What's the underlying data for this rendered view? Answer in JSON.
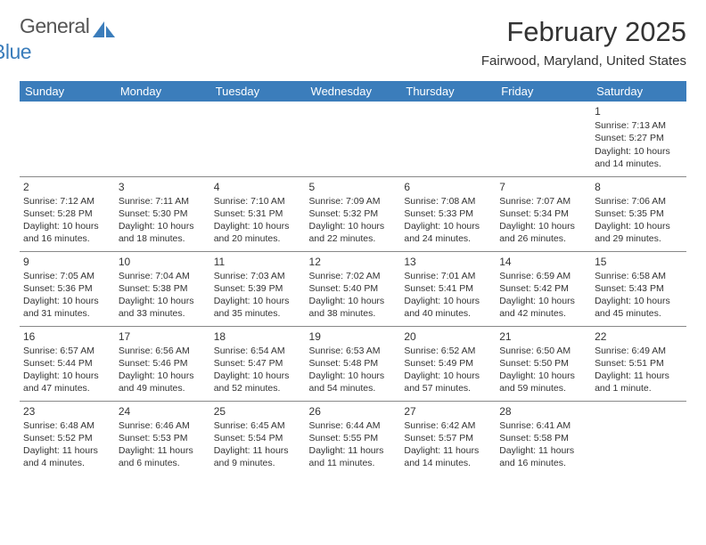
{
  "logo": {
    "text1": "General",
    "text2": "Blue",
    "shape_color": "#3b7dbb",
    "text1_color": "#555555"
  },
  "header": {
    "month_title": "February 2025",
    "location": "Fairwood, Maryland, United States",
    "title_fontsize": 31,
    "location_fontsize": 15,
    "text_color": "#333333"
  },
  "calendar": {
    "header_bg": "#3b7dbb",
    "header_text_color": "#ffffff",
    "border_color": "#888888",
    "cell_text_color": "#333333",
    "day_header_fontsize": 13,
    "cell_fontsize": 10.5,
    "daynum_fontsize": 12,
    "day_headers": [
      "Sunday",
      "Monday",
      "Tuesday",
      "Wednesday",
      "Thursday",
      "Friday",
      "Saturday"
    ],
    "weeks": [
      [
        null,
        null,
        null,
        null,
        null,
        null,
        {
          "n": "1",
          "sunrise": "Sunrise: 7:13 AM",
          "sunset": "Sunset: 5:27 PM",
          "day1": "Daylight: 10 hours",
          "day2": "and 14 minutes."
        }
      ],
      [
        {
          "n": "2",
          "sunrise": "Sunrise: 7:12 AM",
          "sunset": "Sunset: 5:28 PM",
          "day1": "Daylight: 10 hours",
          "day2": "and 16 minutes."
        },
        {
          "n": "3",
          "sunrise": "Sunrise: 7:11 AM",
          "sunset": "Sunset: 5:30 PM",
          "day1": "Daylight: 10 hours",
          "day2": "and 18 minutes."
        },
        {
          "n": "4",
          "sunrise": "Sunrise: 7:10 AM",
          "sunset": "Sunset: 5:31 PM",
          "day1": "Daylight: 10 hours",
          "day2": "and 20 minutes."
        },
        {
          "n": "5",
          "sunrise": "Sunrise: 7:09 AM",
          "sunset": "Sunset: 5:32 PM",
          "day1": "Daylight: 10 hours",
          "day2": "and 22 minutes."
        },
        {
          "n": "6",
          "sunrise": "Sunrise: 7:08 AM",
          "sunset": "Sunset: 5:33 PM",
          "day1": "Daylight: 10 hours",
          "day2": "and 24 minutes."
        },
        {
          "n": "7",
          "sunrise": "Sunrise: 7:07 AM",
          "sunset": "Sunset: 5:34 PM",
          "day1": "Daylight: 10 hours",
          "day2": "and 26 minutes."
        },
        {
          "n": "8",
          "sunrise": "Sunrise: 7:06 AM",
          "sunset": "Sunset: 5:35 PM",
          "day1": "Daylight: 10 hours",
          "day2": "and 29 minutes."
        }
      ],
      [
        {
          "n": "9",
          "sunrise": "Sunrise: 7:05 AM",
          "sunset": "Sunset: 5:36 PM",
          "day1": "Daylight: 10 hours",
          "day2": "and 31 minutes."
        },
        {
          "n": "10",
          "sunrise": "Sunrise: 7:04 AM",
          "sunset": "Sunset: 5:38 PM",
          "day1": "Daylight: 10 hours",
          "day2": "and 33 minutes."
        },
        {
          "n": "11",
          "sunrise": "Sunrise: 7:03 AM",
          "sunset": "Sunset: 5:39 PM",
          "day1": "Daylight: 10 hours",
          "day2": "and 35 minutes."
        },
        {
          "n": "12",
          "sunrise": "Sunrise: 7:02 AM",
          "sunset": "Sunset: 5:40 PM",
          "day1": "Daylight: 10 hours",
          "day2": "and 38 minutes."
        },
        {
          "n": "13",
          "sunrise": "Sunrise: 7:01 AM",
          "sunset": "Sunset: 5:41 PM",
          "day1": "Daylight: 10 hours",
          "day2": "and 40 minutes."
        },
        {
          "n": "14",
          "sunrise": "Sunrise: 6:59 AM",
          "sunset": "Sunset: 5:42 PM",
          "day1": "Daylight: 10 hours",
          "day2": "and 42 minutes."
        },
        {
          "n": "15",
          "sunrise": "Sunrise: 6:58 AM",
          "sunset": "Sunset: 5:43 PM",
          "day1": "Daylight: 10 hours",
          "day2": "and 45 minutes."
        }
      ],
      [
        {
          "n": "16",
          "sunrise": "Sunrise: 6:57 AM",
          "sunset": "Sunset: 5:44 PM",
          "day1": "Daylight: 10 hours",
          "day2": "and 47 minutes."
        },
        {
          "n": "17",
          "sunrise": "Sunrise: 6:56 AM",
          "sunset": "Sunset: 5:46 PM",
          "day1": "Daylight: 10 hours",
          "day2": "and 49 minutes."
        },
        {
          "n": "18",
          "sunrise": "Sunrise: 6:54 AM",
          "sunset": "Sunset: 5:47 PM",
          "day1": "Daylight: 10 hours",
          "day2": "and 52 minutes."
        },
        {
          "n": "19",
          "sunrise": "Sunrise: 6:53 AM",
          "sunset": "Sunset: 5:48 PM",
          "day1": "Daylight: 10 hours",
          "day2": "and 54 minutes."
        },
        {
          "n": "20",
          "sunrise": "Sunrise: 6:52 AM",
          "sunset": "Sunset: 5:49 PM",
          "day1": "Daylight: 10 hours",
          "day2": "and 57 minutes."
        },
        {
          "n": "21",
          "sunrise": "Sunrise: 6:50 AM",
          "sunset": "Sunset: 5:50 PM",
          "day1": "Daylight: 10 hours",
          "day2": "and 59 minutes."
        },
        {
          "n": "22",
          "sunrise": "Sunrise: 6:49 AM",
          "sunset": "Sunset: 5:51 PM",
          "day1": "Daylight: 11 hours",
          "day2": "and 1 minute."
        }
      ],
      [
        {
          "n": "23",
          "sunrise": "Sunrise: 6:48 AM",
          "sunset": "Sunset: 5:52 PM",
          "day1": "Daylight: 11 hours",
          "day2": "and 4 minutes."
        },
        {
          "n": "24",
          "sunrise": "Sunrise: 6:46 AM",
          "sunset": "Sunset: 5:53 PM",
          "day1": "Daylight: 11 hours",
          "day2": "and 6 minutes."
        },
        {
          "n": "25",
          "sunrise": "Sunrise: 6:45 AM",
          "sunset": "Sunset: 5:54 PM",
          "day1": "Daylight: 11 hours",
          "day2": "and 9 minutes."
        },
        {
          "n": "26",
          "sunrise": "Sunrise: 6:44 AM",
          "sunset": "Sunset: 5:55 PM",
          "day1": "Daylight: 11 hours",
          "day2": "and 11 minutes."
        },
        {
          "n": "27",
          "sunrise": "Sunrise: 6:42 AM",
          "sunset": "Sunset: 5:57 PM",
          "day1": "Daylight: 11 hours",
          "day2": "and 14 minutes."
        },
        {
          "n": "28",
          "sunrise": "Sunrise: 6:41 AM",
          "sunset": "Sunset: 5:58 PM",
          "day1": "Daylight: 11 hours",
          "day2": "and 16 minutes."
        },
        null
      ]
    ]
  }
}
